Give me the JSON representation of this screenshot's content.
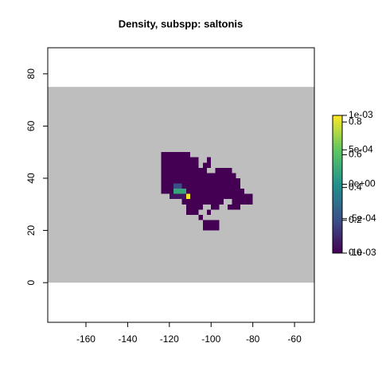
{
  "chart_data": {
    "type": "raster",
    "title": "Density, subspp: saltonis",
    "xlim": [
      -178.3,
      -50.5
    ],
    "ylim": [
      -15.2,
      90
    ],
    "xticks": [
      -160,
      -140,
      -120,
      -100,
      -80,
      -60
    ],
    "yticks": [
      0,
      20,
      40,
      60,
      80
    ],
    "extent": {
      "x": [
        -180,
        -50
      ],
      "y": [
        0,
        75
      ],
      "color": "#bebebe"
    },
    "cell_height": 2,
    "colormap": [
      "#440154",
      "#3b528b",
      "#21908c",
      "#5dc863",
      "#fde725"
    ],
    "value_range": [
      0,
      0.84
    ],
    "rows": [
      {
        "lat": 48,
        "spans": [
          [
            -124,
            -110,
            0
          ]
        ]
      },
      {
        "lat": 46,
        "spans": [
          [
            -124,
            -106,
            0
          ],
          [
            -102,
            -100,
            0
          ]
        ]
      },
      {
        "lat": 44,
        "spans": [
          [
            -124,
            -106,
            0
          ],
          [
            -104,
            -100,
            0
          ]
        ]
      },
      {
        "lat": 42,
        "spans": [
          [
            -124,
            -102,
            0
          ],
          [
            -98,
            -90,
            0
          ]
        ]
      },
      {
        "lat": 40,
        "spans": [
          [
            -124,
            -88,
            0
          ]
        ]
      },
      {
        "lat": 38,
        "spans": [
          [
            -124,
            -86,
            0
          ]
        ]
      },
      {
        "lat": 36,
        "spans": [
          [
            -124,
            -118,
            0
          ],
          [
            -118,
            -114,
            0.2
          ],
          [
            -114,
            -86,
            0
          ]
        ]
      },
      {
        "lat": 34,
        "spans": [
          [
            -124,
            -118,
            0
          ],
          [
            -118,
            -112,
            0.5
          ],
          [
            -112,
            -84,
            0
          ]
        ]
      },
      {
        "lat": 32,
        "spans": [
          [
            -120,
            -112,
            0.05
          ],
          [
            -112,
            -110,
            0.84
          ],
          [
            -110,
            -80,
            0
          ]
        ]
      },
      {
        "lat": 30,
        "spans": [
          [
            -114,
            -94,
            0
          ],
          [
            -90,
            -80,
            0
          ]
        ]
      },
      {
        "lat": 28,
        "spans": [
          [
            -112,
            -104,
            0
          ],
          [
            -100,
            -96,
            0
          ],
          [
            -92,
            -86,
            0
          ]
        ]
      },
      {
        "lat": 26,
        "spans": [
          [
            -112,
            -106,
            0
          ],
          [
            -102,
            -100,
            0
          ]
        ]
      },
      {
        "lat": 24,
        "spans": [
          [
            -106,
            -104,
            0
          ]
        ]
      },
      {
        "lat": 22,
        "spans": [
          [
            -104,
            -96,
            0
          ]
        ]
      },
      {
        "lat": 20,
        "spans": [
          [
            -104,
            -96,
            0
          ]
        ]
      }
    ],
    "legend": {
      "lim": [
        0,
        0.84
      ],
      "ticks": [
        {
          "value": 0,
          "label": "0.0"
        },
        0.2,
        0.4,
        0.6,
        0.8
      ]
    },
    "legend2": {
      "lim": [
        -0.001,
        0.001
      ],
      "ticks": [
        {
          "value": -0.001,
          "label": "-1e-03"
        },
        {
          "value": -0.0005,
          "label": "-5e-04"
        },
        {
          "value": 0,
          "label": "0e+00"
        },
        {
          "value": 0.0005,
          "label": "5e-04"
        },
        {
          "value": 0.001,
          "label": "1e-03"
        }
      ]
    }
  }
}
